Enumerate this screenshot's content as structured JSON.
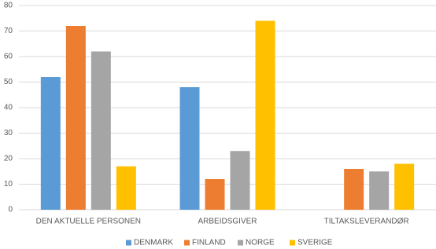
{
  "chart_data": {
    "type": "bar",
    "categories": [
      "DEN AKTUELLE PERSONEN",
      "ARBEIDSGIVER",
      "TILTAKSLEVERANDØR"
    ],
    "series": [
      {
        "name": "DENMARK",
        "color": "#5b9bd5",
        "values": [
          52,
          48,
          null
        ]
      },
      {
        "name": "FINLAND",
        "color": "#ed7d31",
        "values": [
          72,
          12,
          16
        ]
      },
      {
        "name": "NORGE",
        "color": "#a5a5a5",
        "values": [
          62,
          23,
          15
        ]
      },
      {
        "name": "SVERIGE",
        "color": "#ffc000",
        "values": [
          17,
          74,
          18
        ]
      }
    ],
    "ylim": [
      0,
      80
    ],
    "yticks": [
      0,
      10,
      20,
      30,
      40,
      50,
      60,
      70,
      80
    ],
    "grid": true,
    "legend": "bottom"
  }
}
